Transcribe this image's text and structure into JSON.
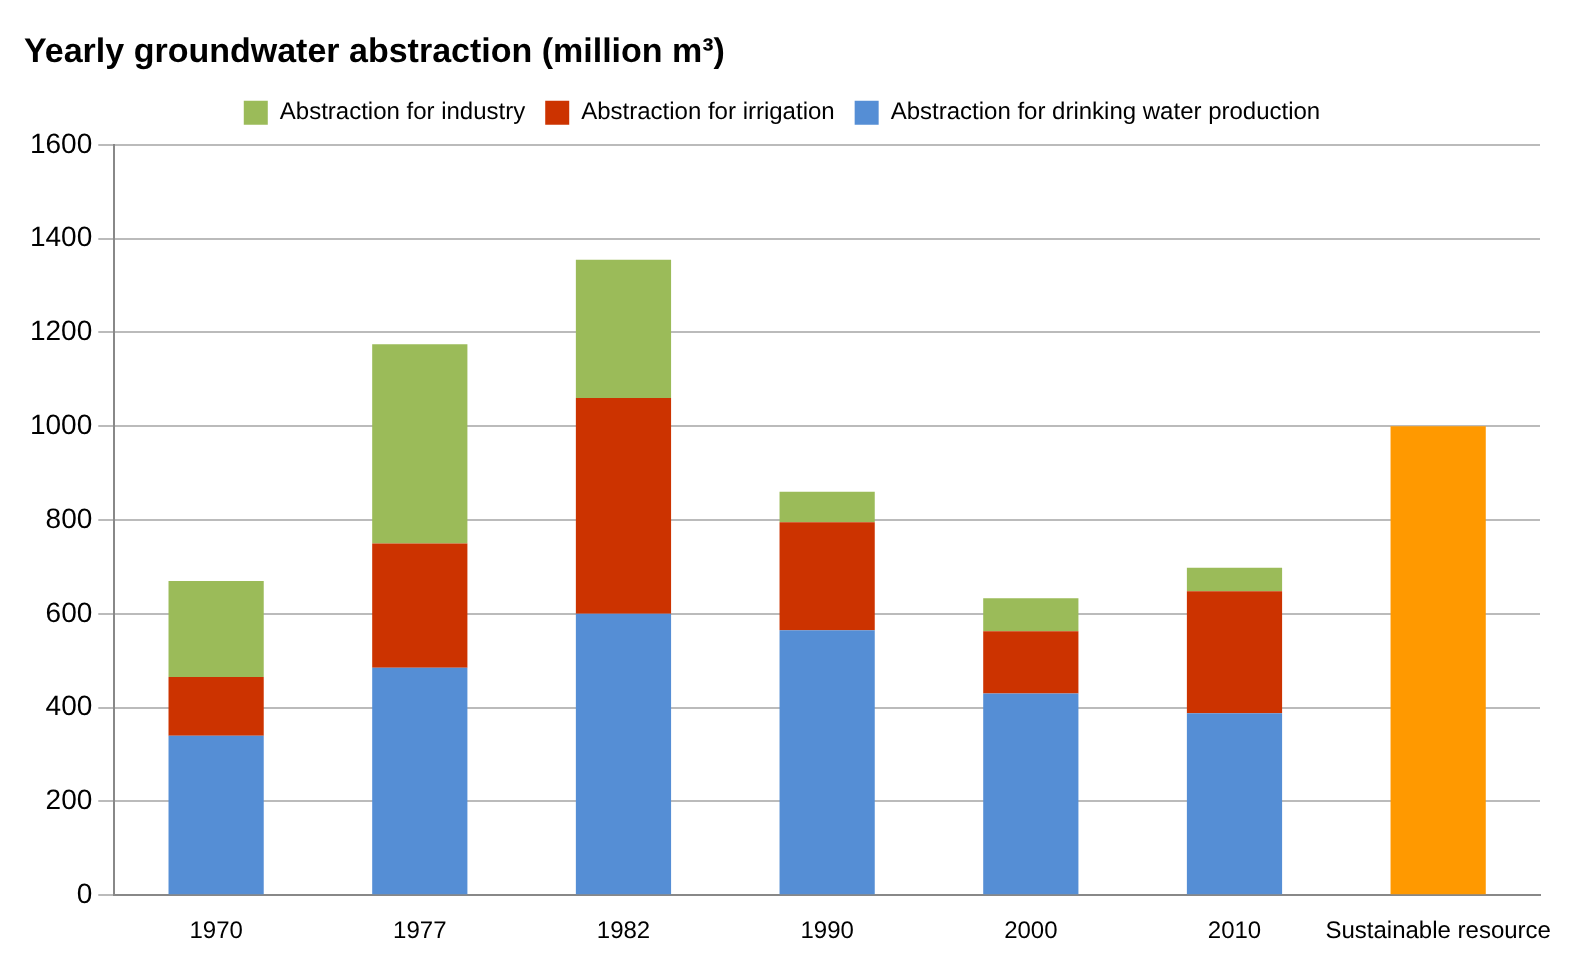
{
  "chart_data": {
    "type": "bar",
    "title": "Yearly groundwater abstraction (million m³)",
    "categories": [
      "1970",
      "1977",
      "1982",
      "1990",
      "2000",
      "2010",
      "Sustainable resource"
    ],
    "stacked": true,
    "ylim": [
      0,
      1600
    ],
    "yticks": [
      0,
      200,
      400,
      600,
      800,
      1000,
      1200,
      1400,
      1600
    ],
    "grid": "y",
    "legend": "top",
    "series": [
      {
        "name": "Abstraction for drinking water production",
        "color": "#558ed5",
        "values": [
          340,
          485,
          600,
          565,
          430,
          388,
          null
        ]
      },
      {
        "name": "Abstraction for irrigation",
        "color": "#cc3300",
        "values": [
          125,
          265,
          460,
          230,
          133,
          260,
          null
        ]
      },
      {
        "name": "Abstraction for industry",
        "color": "#9bbb59",
        "values": [
          205,
          425,
          295,
          65,
          70,
          50,
          null
        ]
      },
      {
        "color": "#ff9900",
        "values": [
          null,
          null,
          null,
          null,
          null,
          null,
          1000
        ]
      }
    ]
  }
}
